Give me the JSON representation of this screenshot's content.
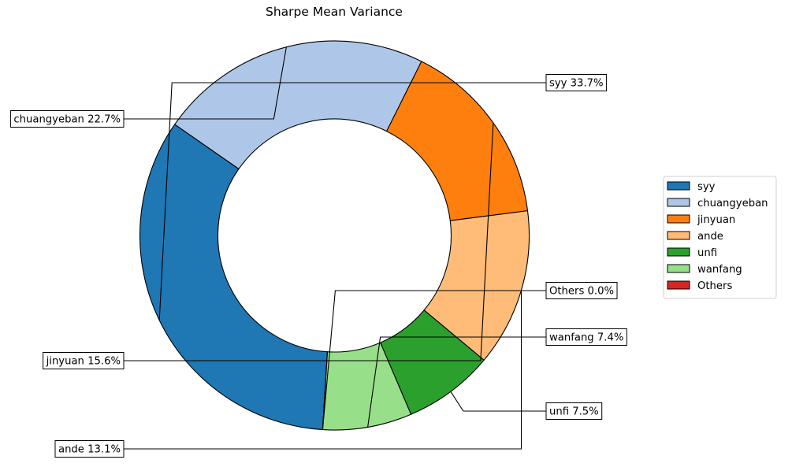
{
  "chart_data": {
    "type": "pie",
    "title": "Sharpe Mean Variance",
    "donut": true,
    "slices": [
      {
        "name": "syy",
        "value": 33.7,
        "color": "#1f77b4",
        "label": "syy 33.7%"
      },
      {
        "name": "chuangyeban",
        "value": 22.7,
        "color": "#aec7e8",
        "label": "chuangyeban 22.7%"
      },
      {
        "name": "jinyuan",
        "value": 15.6,
        "color": "#ff7f0e",
        "label": "jinyuan 15.6%"
      },
      {
        "name": "ande",
        "value": 13.1,
        "color": "#ffbb78",
        "label": "ande 13.1%"
      },
      {
        "name": "unfi",
        "value": 7.5,
        "color": "#2ca02c",
        "label": "unfi 7.5%"
      },
      {
        "name": "wanfang",
        "value": 7.4,
        "color": "#98df8a",
        "label": "wanfang 7.4%"
      },
      {
        "name": "Others",
        "value": 0.0,
        "color": "#d62728",
        "label": "Others 0.0%"
      }
    ],
    "legend": {
      "placement": "right"
    }
  }
}
